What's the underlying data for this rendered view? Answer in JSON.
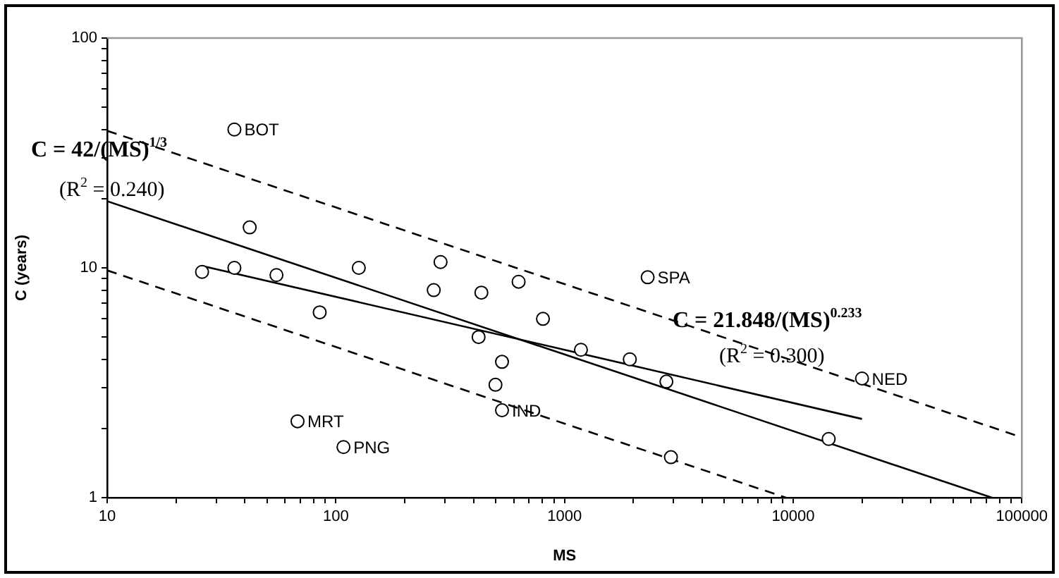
{
  "chart_data": {
    "type": "scatter",
    "xlabel": "MS",
    "ylabel": "C (years)",
    "log": "xy",
    "grid": false,
    "legend": false,
    "marker": "circle",
    "xlim": [
      10,
      100000
    ],
    "xticks": [
      10,
      {
        "value": 20,
        "label": null
      },
      {
        "value": 30,
        "label": null
      },
      {
        "value": 40,
        "label": null
      },
      {
        "value": 50,
        "label": null
      },
      {
        "value": 60,
        "label": null
      },
      {
        "value": 70,
        "label": null
      },
      {
        "value": 80,
        "label": null
      },
      {
        "value": 90,
        "label": null
      },
      100,
      {
        "value": 200,
        "label": null
      },
      {
        "value": 300,
        "label": null
      },
      {
        "value": 400,
        "label": null
      },
      {
        "value": 500,
        "label": null
      },
      {
        "value": 600,
        "label": null
      },
      {
        "value": 700,
        "label": null
      },
      {
        "value": 800,
        "label": null
      },
      {
        "value": 900,
        "label": null
      },
      1000,
      {
        "value": 2000,
        "label": null
      },
      {
        "value": 3000,
        "label": null
      },
      {
        "value": 4000,
        "label": null
      },
      {
        "value": 5000,
        "label": null
      },
      {
        "value": 6000,
        "label": null
      },
      {
        "value": 7000,
        "label": null
      },
      {
        "value": 8000,
        "label": null
      },
      {
        "value": 9000,
        "label": null
      },
      10000,
      {
        "value": 20000,
        "label": null
      },
      {
        "value": 30000,
        "label": null
      },
      {
        "value": 40000,
        "label": null
      },
      {
        "value": 50000,
        "label": null
      },
      {
        "value": 60000,
        "label": null
      },
      {
        "value": 70000,
        "label": null
      },
      {
        "value": 80000,
        "label": null
      },
      {
        "value": 90000,
        "label": null
      },
      100000
    ],
    "ylim": [
      1,
      100
    ],
    "yticks": [
      1,
      {
        "value": 2,
        "label": null
      },
      {
        "value": 3,
        "label": null
      },
      {
        "value": 4,
        "label": null
      },
      {
        "value": 5,
        "label": null
      },
      {
        "value": 6,
        "label": null
      },
      {
        "value": 7,
        "label": null
      },
      {
        "value": 8,
        "label": null
      },
      {
        "value": 9,
        "label": null
      },
      10,
      {
        "value": 20,
        "label": null
      },
      {
        "value": 30,
        "label": null
      },
      {
        "value": 40,
        "label": null
      },
      {
        "value": 50,
        "label": null
      },
      {
        "value": 60,
        "label": null
      },
      {
        "value": 70,
        "label": null
      },
      {
        "value": 80,
        "label": null
      },
      {
        "value": 90,
        "label": null
      },
      100
    ],
    "series": [
      {
        "color": "#000000",
        "x": [
          36,
          42,
          26,
          36,
          55,
          85,
          126,
          268,
          287,
          433,
          421,
          630,
          533,
          499,
          533,
          68,
          108,
          805,
          1180,
          1930,
          2790,
          2310,
          2920,
          14300,
          20000
        ],
        "values": [
          40,
          15,
          9.6,
          10,
          9.3,
          6.4,
          10,
          8.0,
          10.6,
          7.8,
          5.0,
          8.7,
          3.9,
          3.1,
          2.4,
          2.15,
          1.66,
          6.0,
          4.4,
          4.0,
          3.2,
          9.1,
          1.5,
          1.8,
          3.3
        ]
      },
      {
        "type": "line",
        "color": "#000000",
        "marker": "none",
        "line_style": "solid",
        "x": [
          10,
          1000,
          74000
        ],
        "values": [
          19.5,
          4.2,
          1.0
        ]
      },
      {
        "type": "line",
        "color": "#000000",
        "marker": "none",
        "line_style": "dashed",
        "x": [
          10,
          1000,
          100000
        ],
        "values": [
          39.5,
          8.5,
          1.83
        ]
      },
      {
        "type": "line",
        "color": "#000000",
        "marker": "none",
        "line_style": "dashed",
        "x": [
          10,
          1000,
          9300
        ],
        "values": [
          9.75,
          2.1,
          1.0
        ]
      },
      {
        "type": "line",
        "color": "#000000",
        "marker": "none",
        "line_style": "solid",
        "x": [
          26,
          1000,
          20000
        ],
        "values": [
          10.2,
          4.4,
          2.2
        ]
      }
    ],
    "annotations": [
      "C = 42/(MS)$^{1/3}$",
      "(R$^{2}$ = 0.240)",
      "C = 21.848/(MS)$^{0.233}$",
      "(R$^{2}$ = 0.300)",
      {
        "text": "BOT",
        "x": 36,
        "y": 40
      },
      {
        "text": "SPA",
        "x": 2310,
        "y": 9.1
      },
      {
        "text": "NED",
        "x": 20000,
        "y": 3.3
      },
      {
        "text": "IND",
        "x": 533,
        "y": 2.4
      },
      {
        "text": "MRT",
        "x": 68,
        "y": 2.15
      },
      {
        "text": "PNG",
        "x": 108,
        "y": 1.66
      }
    ]
  }
}
